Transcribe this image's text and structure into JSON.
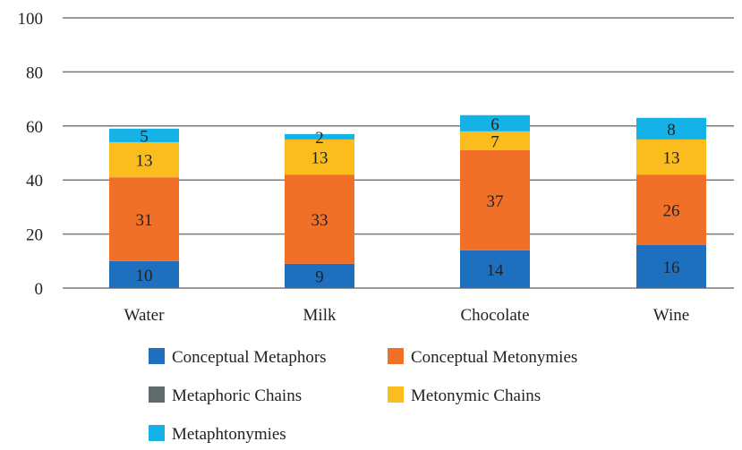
{
  "chart_data": {
    "type": "bar",
    "stacked": true,
    "categories": [
      "Water",
      "Milk",
      "Chocolate",
      "Wine"
    ],
    "series": [
      {
        "name": "Conceptual Metaphors",
        "color": "#1f6fbf",
        "values": [
          10,
          9,
          14,
          16
        ],
        "labels": [
          "10",
          "9",
          "14",
          "16"
        ]
      },
      {
        "name": "Conceptual Metonymies",
        "color": "#f07028",
        "values": [
          31,
          33,
          37,
          26
        ],
        "labels": [
          "31",
          "33",
          "37",
          "26"
        ]
      },
      {
        "name": "Metaphoric Chains",
        "color": "#5f6b6b",
        "values": [
          0,
          0,
          0,
          0
        ],
        "labels": [
          "",
          "",
          "",
          ""
        ]
      },
      {
        "name": "Metonymic Chains",
        "color": "#fbbd1e",
        "values": [
          13,
          13,
          7,
          13
        ],
        "labels": [
          "13",
          "13",
          "7",
          "13"
        ]
      },
      {
        "name": "Metaphtonymies",
        "color": "#14b2e6",
        "values": [
          5,
          2,
          6,
          8
        ],
        "labels": [
          "5",
          "2",
          "6",
          "8"
        ]
      }
    ],
    "ylim": [
      0,
      100
    ],
    "yticks": [
      "0",
      "20",
      "40",
      "60",
      "80",
      "100"
    ],
    "grid": true,
    "legend_position": "bottom"
  }
}
